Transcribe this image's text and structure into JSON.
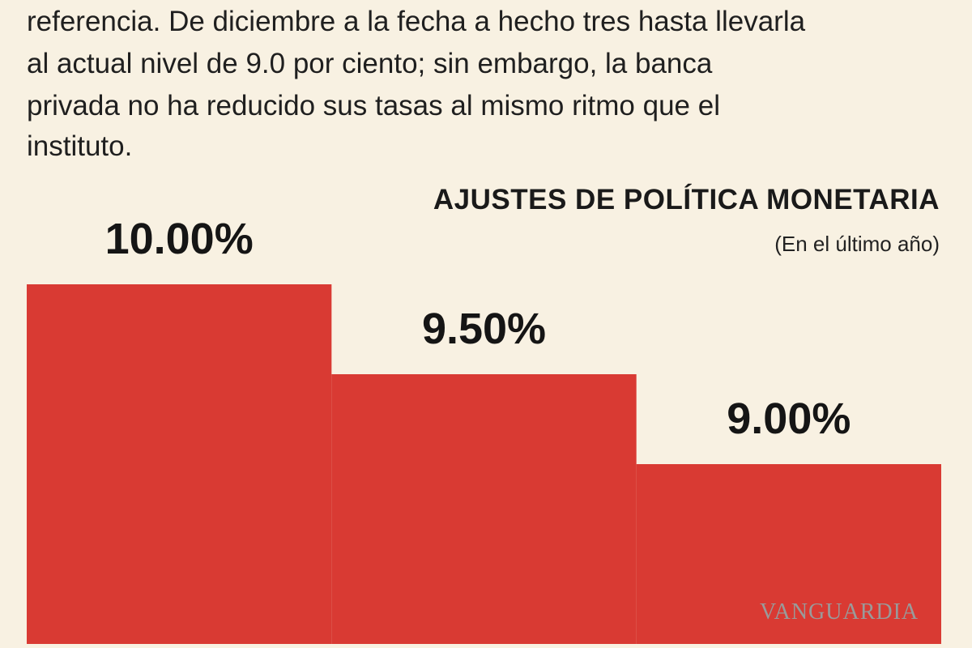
{
  "article_text": [
    "referencia. De diciembre a la fecha a hecho tres hasta llevarla",
    "al actual nivel de 9.0 por ciento; sin embargo, la banca",
    "privada no ha reducido sus tasas al mismo ritmo que el",
    "instituto."
  ],
  "watermark": "VANGUARDIA",
  "chart_data": {
    "type": "bar",
    "title": "AJUSTES DE POLÍTICA MONETARIA",
    "subtitle": "(En el último año)",
    "categories": [
      null,
      null,
      null
    ],
    "values": [
      10,
      9.5,
      9
    ],
    "value_labels": [
      "10.00%",
      "9.50%",
      "9.00%"
    ],
    "color": "#d93a33",
    "ylim": [
      8,
      11.5
    ]
  }
}
